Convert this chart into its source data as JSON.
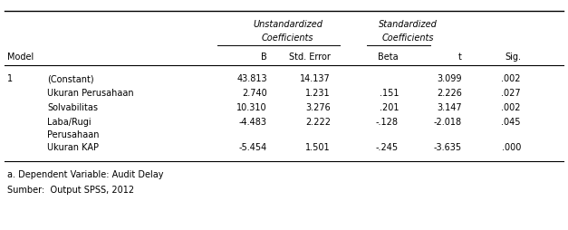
{
  "header_unstd": "Unstandardized",
  "header_std": "Standardized",
  "header_coeff": "Coefficients",
  "col_headers": [
    "Model",
    "",
    "B",
    "Std. Error",
    "Beta",
    "t",
    "Sig."
  ],
  "rows": [
    [
      "1",
      "(Constant)",
      "43.813",
      "14.137",
      "",
      "3.099",
      ".002"
    ],
    [
      "",
      "Ukuran Perusahaan",
      "2.740",
      "1.231",
      ".151",
      "2.226",
      ".027"
    ],
    [
      "",
      "Solvabilitas",
      "10.310",
      "3.276",
      ".201",
      "3.147",
      ".002"
    ],
    [
      "",
      "Laba/Rugi",
      "-4.483",
      "2.222",
      "-.128",
      "-2.018",
      ".045"
    ],
    [
      "",
      "Perusahaan",
      "",
      "",
      "",
      "",
      ""
    ],
    [
      "",
      "Ukuran KAP",
      "-5.454",
      "1.501",
      "-.245",
      "-3.635",
      ".000"
    ]
  ],
  "footnote1": "a. Dependent Variable: Audit Delay",
  "footnote2": "Sumber:  Output SPSS, 2012",
  "bg_color": "#ffffff",
  "text_color": "#000000",
  "fs": 7.0,
  "note_fs": 7.0
}
